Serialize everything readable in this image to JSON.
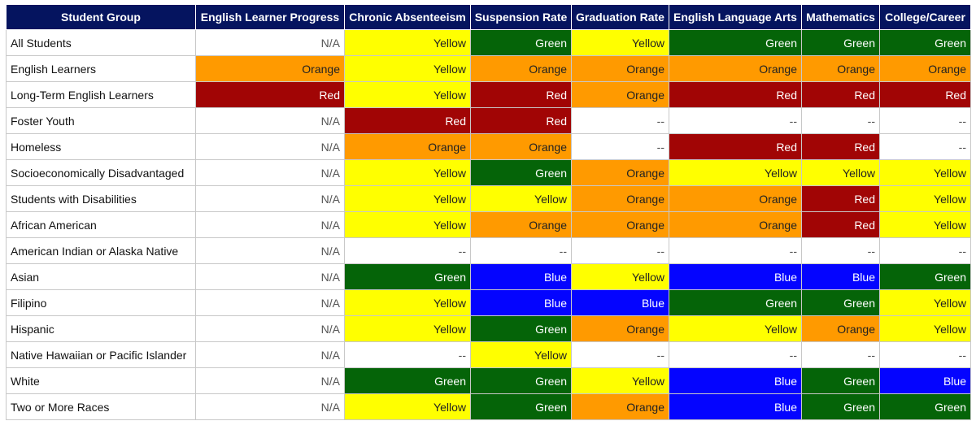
{
  "colors": {
    "Yellow": "#ffff00",
    "Green": "#056408",
    "Orange": "#ff9a00",
    "Red": "#a10505",
    "Blue": "#0404ff",
    "header": "#05145f"
  },
  "headers": [
    "Student Group",
    "English Learner Progress",
    "Chronic Absenteeism",
    "Suspension Rate",
    "Graduation Rate",
    "English Language Arts",
    "Mathematics",
    "College/Career"
  ],
  "rows": [
    {
      "group": "All Students",
      "values": [
        "N/A",
        "Yellow",
        "Green",
        "Yellow",
        "Green",
        "Green",
        "Green"
      ]
    },
    {
      "group": "English Learners",
      "values": [
        "Orange",
        "Yellow",
        "Orange",
        "Orange",
        "Orange",
        "Orange",
        "Orange"
      ]
    },
    {
      "group": "Long-Term English Learners",
      "values": [
        "Red",
        "Yellow",
        "Red",
        "Orange",
        "Red",
        "Red",
        "Red"
      ]
    },
    {
      "group": "Foster Youth",
      "values": [
        "N/A",
        "Red",
        "Red",
        "--",
        "--",
        "--",
        "--"
      ]
    },
    {
      "group": "Homeless",
      "values": [
        "N/A",
        "Orange",
        "Orange",
        "--",
        "Red",
        "Red",
        "--"
      ]
    },
    {
      "group": "Socioeconomically Disadvantaged",
      "values": [
        "N/A",
        "Yellow",
        "Green",
        "Orange",
        "Yellow",
        "Yellow",
        "Yellow"
      ]
    },
    {
      "group": "Students with Disabilities",
      "values": [
        "N/A",
        "Yellow",
        "Yellow",
        "Orange",
        "Orange",
        "Red",
        "Yellow"
      ]
    },
    {
      "group": "African American",
      "values": [
        "N/A",
        "Yellow",
        "Orange",
        "Orange",
        "Orange",
        "Red",
        "Yellow"
      ]
    },
    {
      "group": "American Indian or Alaska Native",
      "values": [
        "N/A",
        "--",
        "--",
        "--",
        "--",
        "--",
        "--"
      ]
    },
    {
      "group": "Asian",
      "values": [
        "N/A",
        "Green",
        "Blue",
        "Yellow",
        "Blue",
        "Blue",
        "Green"
      ]
    },
    {
      "group": "Filipino",
      "values": [
        "N/A",
        "Yellow",
        "Blue",
        "Blue",
        "Green",
        "Green",
        "Yellow"
      ]
    },
    {
      "group": "Hispanic",
      "values": [
        "N/A",
        "Yellow",
        "Green",
        "Orange",
        "Yellow",
        "Orange",
        "Yellow"
      ]
    },
    {
      "group": "Native Hawaiian or Pacific Islander",
      "values": [
        "N/A",
        "--",
        "Yellow",
        "--",
        "--",
        "--",
        "--"
      ]
    },
    {
      "group": "White",
      "values": [
        "N/A",
        "Green",
        "Green",
        "Yellow",
        "Blue",
        "Green",
        "Blue"
      ]
    },
    {
      "group": "Two or More Races",
      "values": [
        "N/A",
        "Yellow",
        "Green",
        "Orange",
        "Blue",
        "Green",
        "Green"
      ]
    }
  ]
}
